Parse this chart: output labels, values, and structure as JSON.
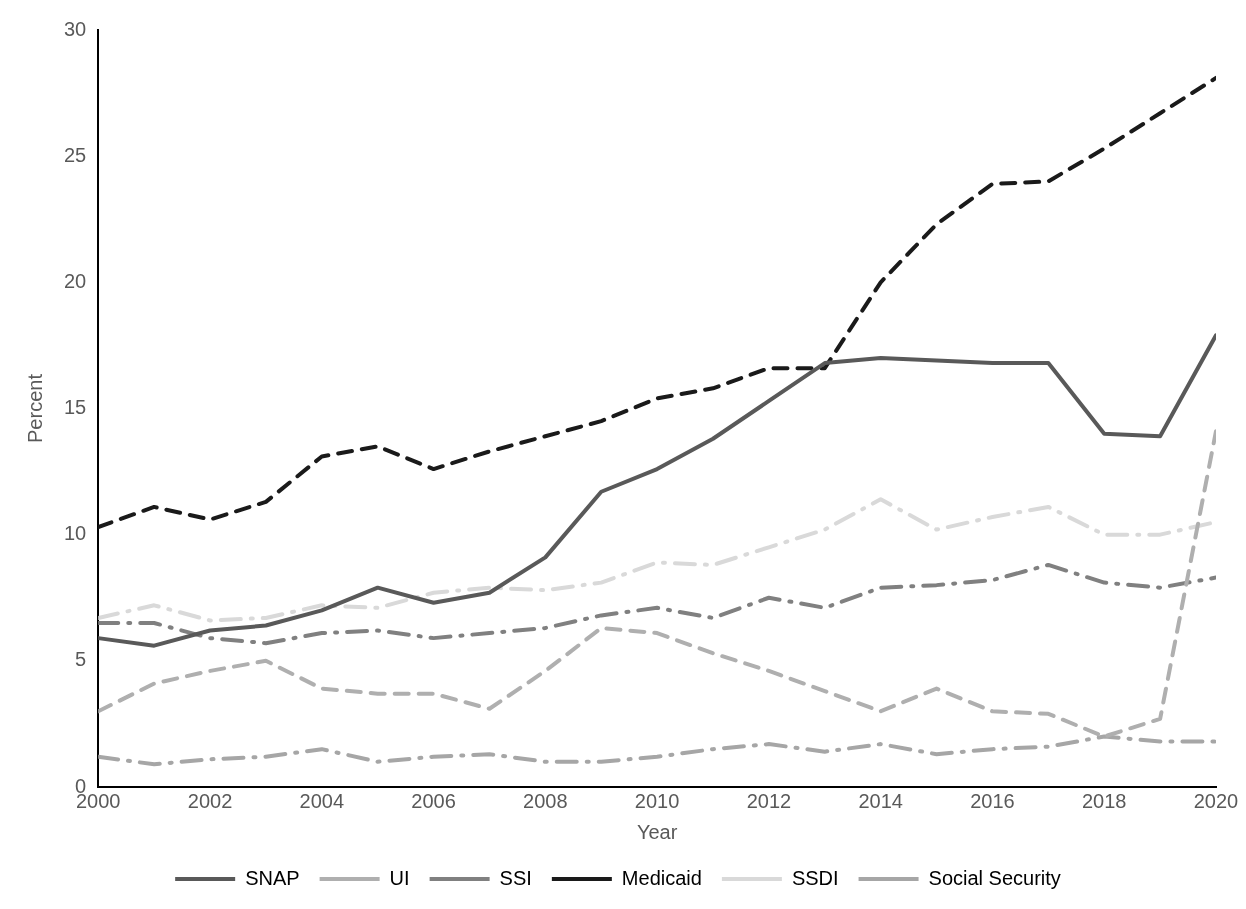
{
  "chart_data": {
    "type": "line",
    "xlabel": "Year",
    "ylabel": "Percent",
    "x": [
      2000,
      2001,
      2002,
      2003,
      2004,
      2005,
      2006,
      2007,
      2008,
      2009,
      2010,
      2011,
      2012,
      2013,
      2014,
      2015,
      2016,
      2017,
      2018,
      2019,
      2020
    ],
    "xlim": [
      2000,
      2020
    ],
    "xticks": [
      2000,
      2002,
      2004,
      2006,
      2008,
      2010,
      2012,
      2014,
      2016,
      2018,
      2020
    ],
    "ylim": [
      0,
      30
    ],
    "yticks": [
      0,
      5,
      10,
      15,
      20,
      25,
      30
    ],
    "grid": false,
    "legend": "bottom",
    "marker": "none",
    "series": [
      {
        "name": "SNAP",
        "color": "#595959",
        "line_style": "solid",
        "values": [
          5.9,
          5.6,
          6.2,
          6.4,
          7.0,
          7.9,
          7.3,
          7.7,
          9.1,
          11.7,
          12.6,
          13.8,
          15.3,
          16.8,
          17.0,
          16.9,
          16.8,
          16.8,
          14.0,
          13.9,
          17.9
        ]
      },
      {
        "name": "UI",
        "color": "#afafaf",
        "line_style": "dashed",
        "values": [
          3.0,
          4.1,
          4.6,
          5.0,
          3.9,
          3.7,
          3.7,
          3.1,
          4.6,
          6.3,
          6.1,
          5.3,
          4.6,
          3.8,
          3.0,
          3.9,
          3.0,
          2.9,
          2.0,
          2.7,
          14.1
        ]
      },
      {
        "name": "SSI",
        "color": "#808080",
        "line_style": "dashdot",
        "values": [
          6.5,
          6.5,
          5.9,
          5.7,
          6.1,
          6.2,
          5.9,
          6.1,
          6.3,
          6.8,
          7.1,
          6.7,
          7.5,
          7.1,
          7.9,
          8.0,
          8.2,
          8.8,
          8.1,
          7.9,
          8.3
        ]
      },
      {
        "name": "Medicaid",
        "color": "#1a1a1a",
        "line_style": "dashed",
        "values": [
          10.3,
          11.1,
          10.6,
          11.3,
          13.1,
          13.5,
          12.6,
          13.3,
          13.9,
          14.5,
          15.4,
          15.8,
          16.6,
          16.6,
          20.0,
          22.3,
          23.9,
          24.0,
          25.3,
          26.7,
          28.1
        ]
      },
      {
        "name": "SSDI",
        "color": "#d9d9d9",
        "line_style": "dashdot",
        "values": [
          6.7,
          7.2,
          6.6,
          6.7,
          7.2,
          7.1,
          7.7,
          7.9,
          7.8,
          8.1,
          8.9,
          8.8,
          9.5,
          10.2,
          11.4,
          10.2,
          10.7,
          11.1,
          10.0,
          10.0,
          10.5
        ]
      },
      {
        "name": "Social Security",
        "color": "#a6a6a6",
        "line_style": "dashdot",
        "values": [
          1.2,
          0.9,
          1.1,
          1.2,
          1.5,
          1.0,
          1.2,
          1.3,
          1.0,
          1.0,
          1.2,
          1.5,
          1.7,
          1.4,
          1.7,
          1.3,
          1.5,
          1.6,
          2.0,
          1.8,
          1.8
        ]
      }
    ]
  }
}
